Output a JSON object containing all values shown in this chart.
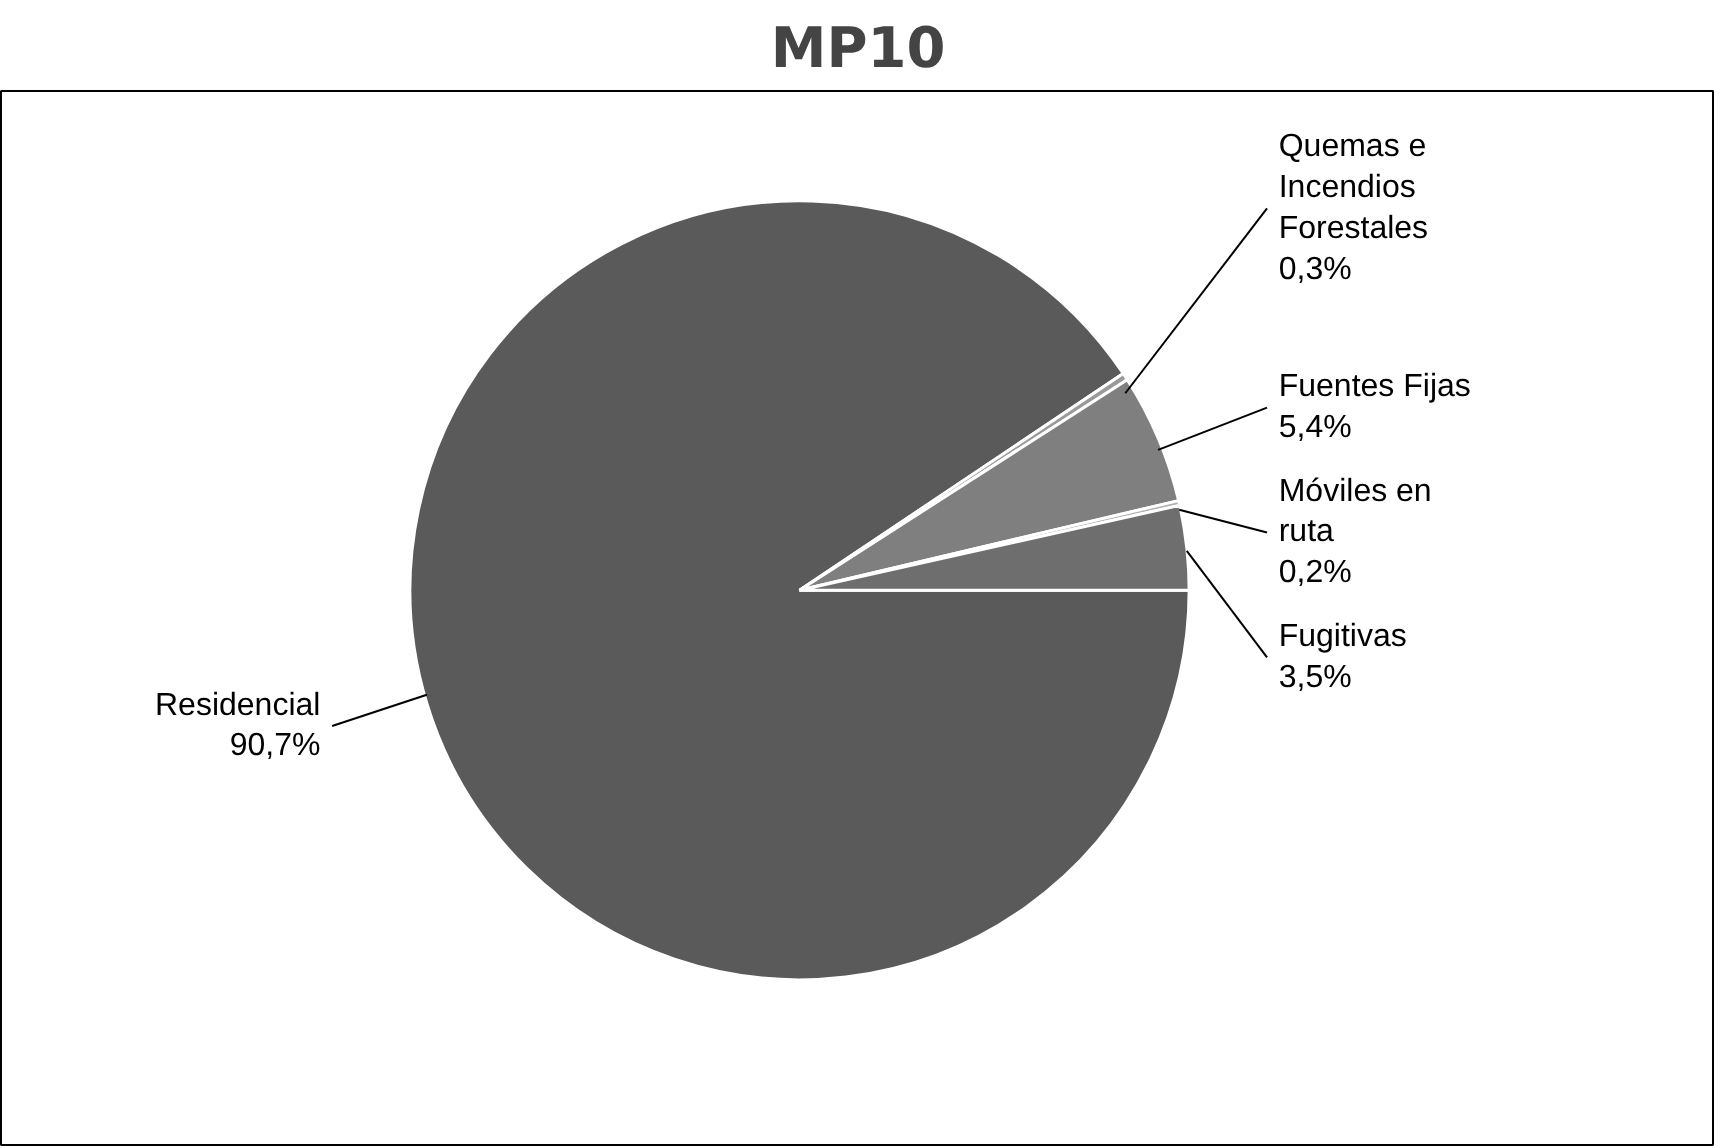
{
  "chart_data": {
    "type": "pie",
    "title": "MP10",
    "categories": [
      "Residencial",
      "Quemas e Incendios Forestales",
      "Fuentes Fijas",
      "Móviles en ruta",
      "Fugitivas"
    ],
    "values": [
      90.7,
      0.3,
      5.4,
      0.2,
      3.5
    ],
    "value_labels": [
      "90,7%",
      "0,3%",
      "5,4%",
      "0,2%",
      "3,5%"
    ],
    "colors": [
      "#5a5a5a",
      "#9a9a9a",
      "#7f7f7f",
      "#b0b0b0",
      "#6e6e6e"
    ]
  }
}
